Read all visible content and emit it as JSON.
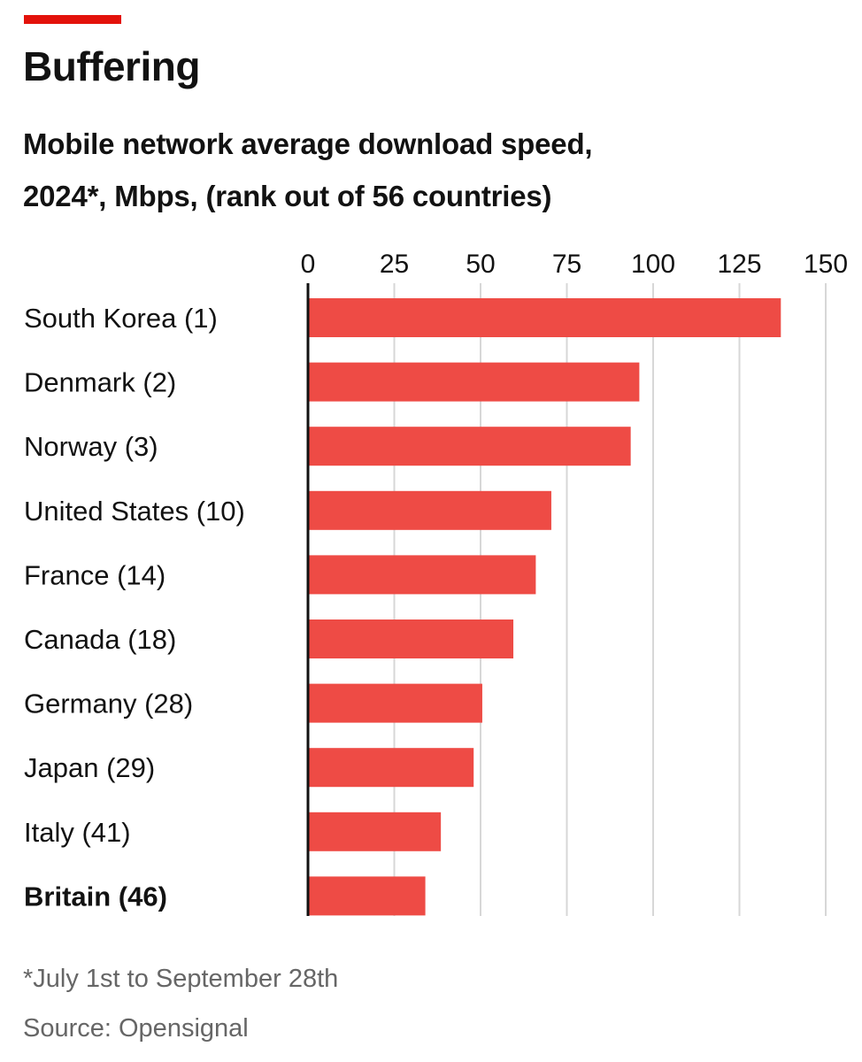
{
  "header": {
    "title": "Buffering",
    "subtitle_line1": "Mobile network average download speed,",
    "subtitle_line2": "2024*, Mbps, (rank out of 56 countries)"
  },
  "footer": {
    "footnote": "*July 1st to September 28th",
    "source": "Source: Opensignal"
  },
  "colors": {
    "accent": "#e3120b",
    "bar": "#ee4b45",
    "grid": "#d7d7d7",
    "axis": "#121212"
  },
  "chart_data": {
    "type": "bar",
    "orientation": "horizontal",
    "title": "Buffering",
    "subtitle": "Mobile network average download speed, 2024*, Mbps, (rank out of 56 countries)",
    "xlabel": "",
    "ylabel": "",
    "xlim": [
      0,
      150
    ],
    "ticks": [
      0,
      25,
      50,
      75,
      100,
      125,
      150
    ],
    "tick_position": "top",
    "grid": true,
    "categories": [
      "South Korea (1)",
      "Denmark (2)",
      "Norway (3)",
      "United States (10)",
      "France (14)",
      "Canada (18)",
      "Germany (28)",
      "Japan (29)",
      "Italy (41)",
      "Britain (46)"
    ],
    "highlight": [
      "Britain (46)"
    ],
    "values": [
      137,
      96,
      93.5,
      70.5,
      66,
      59.5,
      50.5,
      48,
      38.5,
      34
    ]
  }
}
